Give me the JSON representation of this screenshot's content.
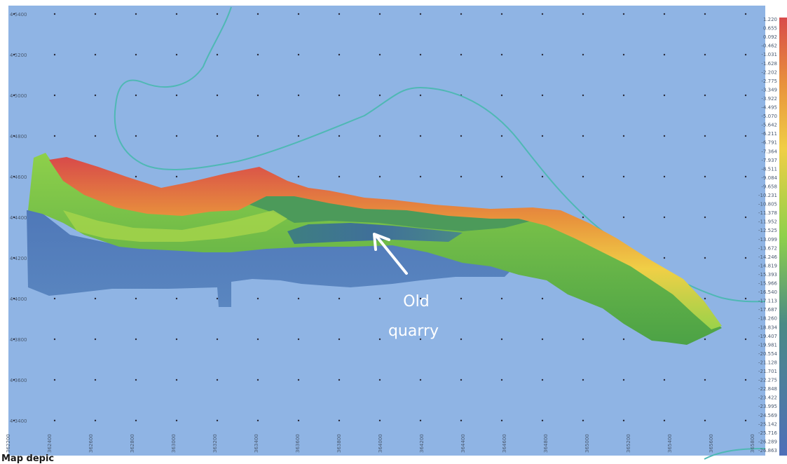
{
  "map": {
    "background_color": "#8fb4e4",
    "frame_color": "#ffffff",
    "contour_color": "#4fb8b4",
    "elevation_colors": [
      "#d84a4a",
      "#e8913c",
      "#f0cf46",
      "#8ed04a",
      "#52b84a",
      "#4a8a86",
      "#4f6fb8"
    ],
    "annotation": {
      "lines": [
        "Old",
        "quarry"
      ],
      "arrow": "white-arrow-icon"
    },
    "left_axis_labels": [
      "4 5400",
      "4 5200",
      "4 5000",
      "4 4800",
      "4 4600",
      "4 4400",
      "4 4200",
      "4 4000",
      "4 3800",
      "4 3600",
      "4 3400"
    ],
    "bottom_axis_labels": [
      "362200",
      "362400",
      "362600",
      "362800",
      "363000",
      "363200",
      "363400",
      "363600",
      "363800",
      "364000",
      "364200",
      "364400",
      "364600",
      "364800",
      "365000",
      "365200",
      "365400",
      "365600",
      "365800"
    ],
    "legend_values": [
      "1.220",
      "0.655",
      "0.092",
      "-0.462",
      "-1.031",
      "-1.628",
      "-2.202",
      "-2.775",
      "-3.349",
      "-3.922",
      "-4.495",
      "-5.070",
      "-5.642",
      "-6.211",
      "-6.791",
      "-7.364",
      "-7.937",
      "-8.511",
      "-9.084",
      "-9.658",
      "-10.231",
      "-10.805",
      "-11.378",
      "-11.952",
      "-12.525",
      "-13.099",
      "-13.672",
      "-14.246",
      "-14.819",
      "-15.393",
      "-15.966",
      "-16.540",
      "-17.113",
      "-17.687",
      "-18.260",
      "-18.834",
      "-19.407",
      "-19.981",
      "-20.554",
      "-21.128",
      "-21.701",
      "-22.275",
      "-22.848",
      "-23.422",
      "-23.995",
      "-24.569",
      "-25.142",
      "-25.716",
      "-26.289",
      "-26.863"
    ],
    "caption": "Map depic"
  }
}
